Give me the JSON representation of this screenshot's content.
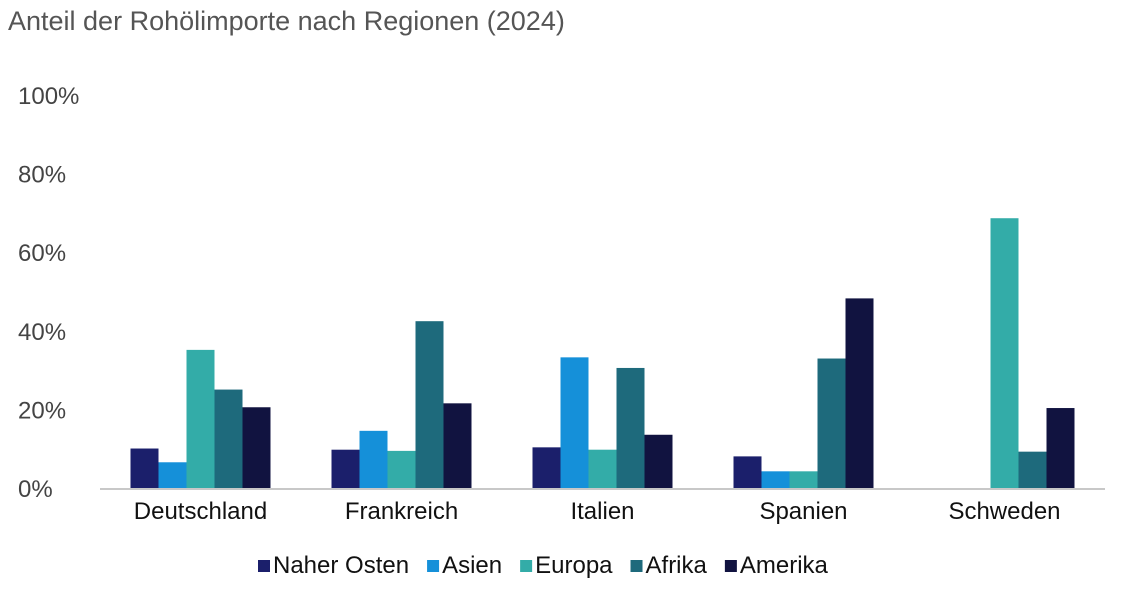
{
  "chart_data": {
    "type": "bar",
    "title": "Anteil der Rohölimporte nach Regionen (2024)",
    "xlabel": "",
    "ylabel": "",
    "ylim": [
      0,
      100
    ],
    "yticks": [
      0,
      20,
      40,
      60,
      80,
      100
    ],
    "ytick_labels": [
      "0%",
      "20%",
      "40%",
      "60%",
      "80%",
      "100%"
    ],
    "grid": false,
    "legend_position": "bottom",
    "categories": [
      "Deutschland",
      "Frankreich",
      "Italien",
      "Spanien",
      "Schweden"
    ],
    "series": [
      {
        "name": "Naher Osten",
        "color": "#1b1f6b",
        "values": [
          10.3,
          10.0,
          10.6,
          8.3,
          0
        ]
      },
      {
        "name": "Asien",
        "color": "#1590d9",
        "values": [
          6.8,
          14.8,
          33.5,
          4.5,
          0
        ]
      },
      {
        "name": "Europa",
        "color": "#33aca8",
        "values": [
          35.4,
          9.7,
          10.0,
          4.5,
          68.9
        ]
      },
      {
        "name": "Afrika",
        "color": "#1e6a7c",
        "values": [
          25.3,
          42.7,
          30.8,
          33.2,
          9.5
        ]
      },
      {
        "name": "Amerika",
        "color": "#111340",
        "values": [
          20.8,
          21.8,
          13.8,
          48.5,
          20.6
        ]
      }
    ]
  }
}
